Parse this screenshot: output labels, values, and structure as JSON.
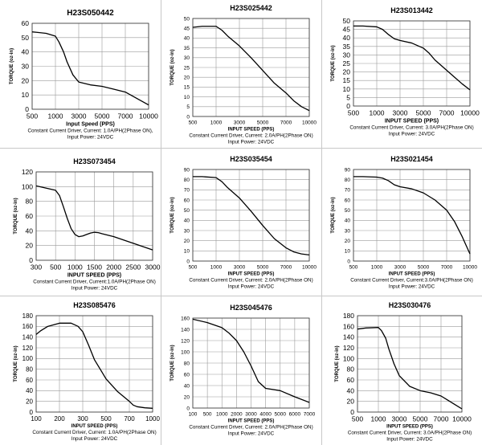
{
  "chart_data": [
    {
      "type": "line",
      "title": "H23S050442",
      "xlabel": "Input Speed (PPS)",
      "ylabel": "TORQUE (oz-in)",
      "caption": [
        "Constant Current Driver, Current: 1.0A/PH(2Phase ON),",
        "Input Power: 24VDC"
      ],
      "x_ticks": [
        "500",
        "1000",
        "3000",
        "5000",
        "7000",
        "10000"
      ],
      "y_ticks": [
        0,
        10,
        20,
        30,
        40,
        50,
        60
      ],
      "ylim": [
        0,
        60
      ],
      "grid": true,
      "series": [
        {
          "x": [
            500,
            600,
            800,
            1000,
            1300,
            1700,
            2000,
            2500,
            3000,
            4000,
            5000,
            6000,
            7000,
            8000,
            9000,
            10000
          ],
          "y": [
            54,
            53.7,
            53,
            51,
            47,
            40,
            33,
            24,
            19,
            17,
            16,
            14,
            12,
            9,
            6,
            3
          ]
        }
      ]
    },
    {
      "type": "line",
      "title": "H23S025442",
      "xlabel": "INPUT SPEED (PPS)",
      "ylabel": "TORQUE (oz-in)",
      "caption": [
        "Constant Current Driver, Current: 2.0A/PH(2Phase ON)",
        "Input Power: 24VDC"
      ],
      "x_ticks": [
        "500",
        "1000",
        "3000",
        "5000",
        "7000",
        "10000"
      ],
      "y_ticks": [
        0,
        5,
        10,
        15,
        20,
        25,
        30,
        35,
        40,
        45,
        50
      ],
      "ylim": [
        0,
        50
      ],
      "grid": true,
      "series": [
        {
          "x": [
            500,
            700,
            1000,
            1500,
            2000,
            3000,
            4000,
            5000,
            6000,
            7000,
            8000,
            9000,
            10000
          ],
          "y": [
            45.5,
            46,
            46,
            44,
            41,
            36,
            30,
            23.5,
            17,
            12,
            8,
            5,
            3
          ]
        }
      ]
    },
    {
      "type": "line",
      "title": "H23S013442",
      "xlabel": "INPUT SPEED (PPS)",
      "ylabel": "TORQUE (oz-in)",
      "caption": [
        "Constant Current Driver, Current: 3.0A/PH(2Phase ON)",
        "Input Power: 24VDC"
      ],
      "x_ticks": [
        "500",
        "1000",
        "3000",
        "5000",
        "7000",
        "10000"
      ],
      "y_ticks": [
        0,
        5,
        10,
        15,
        20,
        25,
        30,
        35,
        40,
        45,
        50
      ],
      "ylim": [
        0,
        50
      ],
      "grid": true,
      "series": [
        {
          "x": [
            500,
            700,
            1000,
            1500,
            2000,
            2500,
            3000,
            4000,
            5000,
            5500,
            6000,
            7000,
            8000,
            9000,
            10000
          ],
          "y": [
            47,
            47,
            46.5,
            45,
            42,
            39.5,
            38.5,
            37,
            34,
            31,
            27,
            21,
            17,
            13,
            9.5
          ]
        }
      ]
    },
    {
      "type": "line",
      "title": "H23S073454",
      "xlabel": "INPUT SPEED (PPS)",
      "ylabel": "TORQUE (oz-in)",
      "caption": [
        "Constant Current Driver, Current:1.0A/PH(2Phase ON)",
        "Input Power: 24VDC"
      ],
      "x_ticks": [
        "300",
        "500",
        "1000",
        "1500",
        "2000",
        "2500",
        "3000"
      ],
      "y_ticks": [
        0,
        20,
        40,
        60,
        80,
        100,
        120
      ],
      "ylim": [
        0,
        120
      ],
      "grid": true,
      "series": [
        {
          "x": [
            300,
            400,
            500,
            600,
            700,
            800,
            900,
            1000,
            1100,
            1200,
            1300,
            1400,
            1500,
            1600,
            1700,
            2000,
            2500,
            3000
          ],
          "y": [
            101,
            98,
            95,
            88,
            73,
            57,
            43,
            35,
            32,
            33,
            35,
            37,
            38,
            37.5,
            36,
            32,
            23,
            14
          ]
        }
      ]
    },
    {
      "type": "line",
      "title": "H23S035454",
      "xlabel": "INPUT SPEED (PPS)",
      "ylabel": "TORQUE (oz-in)",
      "caption": [
        "Constant Current Driver, Current: 2.0A/PH(2Phase ON)",
        "Input Power: 24VDC"
      ],
      "x_ticks": [
        "500",
        "1000",
        "3000",
        "5000",
        "7000",
        "10000"
      ],
      "y_ticks": [
        0,
        10,
        20,
        30,
        40,
        50,
        60,
        70,
        80,
        90
      ],
      "ylim": [
        0,
        90
      ],
      "grid": true,
      "series": [
        {
          "x": [
            500,
            700,
            1000,
            1500,
            2000,
            3000,
            4000,
            5000,
            6000,
            7000,
            8000,
            9000,
            10000
          ],
          "y": [
            83,
            83,
            82,
            78,
            72,
            62,
            49,
            35,
            22,
            13,
            9,
            7,
            6
          ]
        }
      ]
    },
    {
      "type": "line",
      "title": "H23S021454",
      "xlabel": "INPUT SPEED (PPS)",
      "ylabel": "TORQUE (oz-in)",
      "caption": [
        "Constant Current Driver, Current:3.0A/PH(2Phase ON)",
        "Input Power: 24VDC"
      ],
      "x_ticks": [
        "500",
        "1000",
        "3000",
        "5000",
        "7000",
        "10000"
      ],
      "y_ticks": [
        0,
        10,
        20,
        30,
        40,
        50,
        60,
        70,
        80,
        90
      ],
      "ylim": [
        0,
        90
      ],
      "grid": true,
      "series": [
        {
          "x": [
            500,
            700,
            1000,
            1500,
            2000,
            2500,
            3000,
            4000,
            5000,
            6000,
            7000,
            8000,
            9000,
            10000
          ],
          "y": [
            83,
            83,
            82.5,
            81.5,
            79,
            75,
            73,
            71,
            67,
            60,
            50,
            39,
            24,
            7
          ]
        }
      ]
    },
    {
      "type": "line",
      "title": "H23S085476",
      "xlabel": "INPUT SPEED (PPS)",
      "ylabel": "TORQUE (oz-in)",
      "caption": [
        "Constant Current Driver, Current: 1.0A/PH(2Phase ON)",
        "Input Power: 24VDC"
      ],
      "x_ticks": [
        "100",
        "200",
        "300",
        "500",
        "700",
        "1000"
      ],
      "y_ticks": [
        0,
        20,
        40,
        60,
        80,
        100,
        120,
        140,
        160,
        180
      ],
      "ylim": [
        0,
        180
      ],
      "grid": true,
      "series": [
        {
          "x": [
            100,
            120,
            150,
            200,
            250,
            280,
            300,
            350,
            400,
            500,
            600,
            700,
            750,
            800,
            900,
            1000
          ],
          "y": [
            145,
            152,
            160,
            166,
            166,
            160,
            150,
            125,
            98,
            62,
            38,
            20,
            13,
            10,
            8,
            7
          ]
        }
      ]
    },
    {
      "type": "line",
      "title": "H23S045476",
      "xlabel": "INPUT SPEED (PPS)",
      "ylabel": "TORQUE (oz-in)",
      "caption": [
        "Constant Current Driver, Current: 2.0A/PH(2Phase ON)",
        "Input Power: 24VDC"
      ],
      "x_ticks": [
        "100",
        "500",
        "1000",
        "2000",
        "3000",
        "4000",
        "5000",
        "6000",
        "7000"
      ],
      "y_ticks": [
        0,
        20,
        40,
        60,
        80,
        100,
        120,
        140,
        160
      ],
      "ylim": [
        0,
        160
      ],
      "grid": true,
      "series": [
        {
          "x": [
            100,
            500,
            1000,
            1500,
            2000,
            2500,
            3000,
            3500,
            4000,
            5000,
            6000,
            7000
          ],
          "y": [
            158,
            152,
            143,
            133,
            120,
            100,
            75,
            47,
            35,
            31,
            20,
            10
          ]
        }
      ]
    },
    {
      "type": "line",
      "title": "H23S030476",
      "xlabel": "INPUT SPEED (PPS)",
      "ylabel": "TORQUE (oz-in)",
      "caption": [
        "Constant Current Driver, Current: 3.0A/PH(2Phase ON)",
        "Input Power: 24VDC"
      ],
      "x_ticks": [
        "500",
        "1000",
        "3000",
        "5000",
        "7000",
        "10000"
      ],
      "y_ticks": [
        0,
        20,
        40,
        60,
        80,
        100,
        120,
        140,
        160,
        180
      ],
      "ylim": [
        0,
        180
      ],
      "grid": true,
      "series": [
        {
          "x": [
            500,
            700,
            1000,
            1300,
            1700,
            2000,
            2500,
            3000,
            4000,
            5000,
            6000,
            7000,
            8000,
            9000,
            10000
          ],
          "y": [
            155,
            157,
            158,
            152,
            138,
            118,
            90,
            68,
            48,
            40,
            36,
            30,
            22,
            14,
            6
          ]
        }
      ]
    }
  ]
}
